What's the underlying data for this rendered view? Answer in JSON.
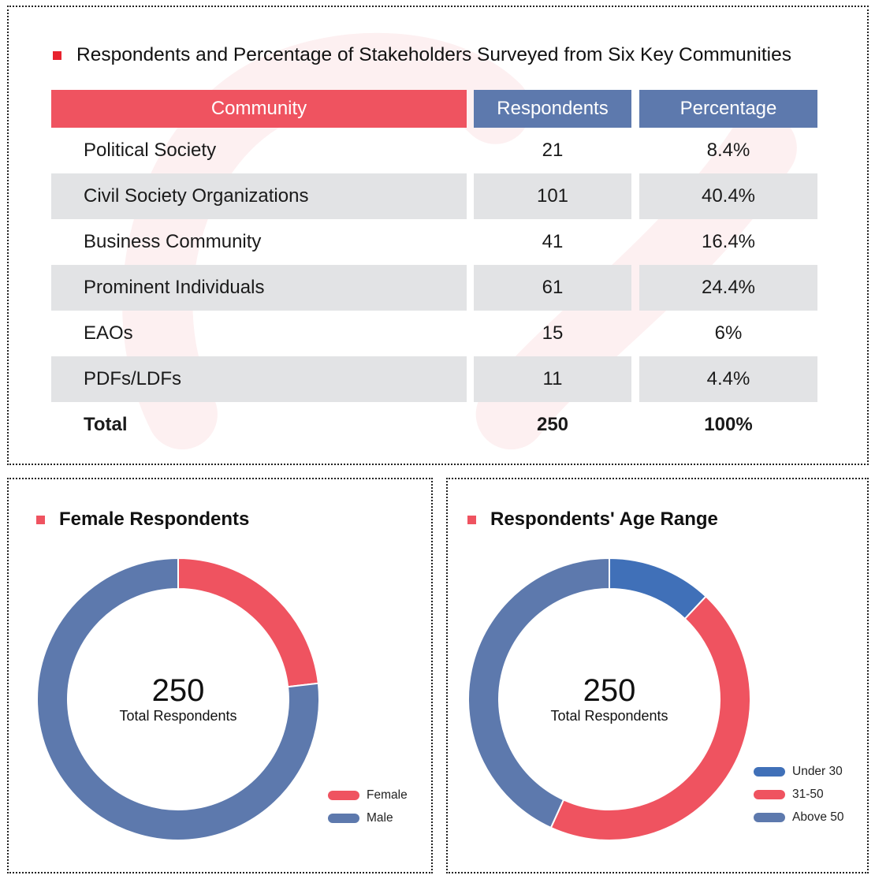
{
  "colors": {
    "accent_red": "#ef5360",
    "title_bullet_red": "#e8232e",
    "header_blue": "#5d79ad",
    "under30_blue": "#4070b8",
    "row_shade": "#e2e3e5"
  },
  "table_section": {
    "title": "Respondents and Percentage of Stakeholders Surveyed from Six Key Communities",
    "headers": {
      "community": "Community",
      "respondents": "Respondents",
      "percentage": "Percentage"
    },
    "rows": [
      {
        "community": "Political Society",
        "respondents": "21",
        "percentage": "8.4%"
      },
      {
        "community": "Civil Society Organizations",
        "respondents": "101",
        "percentage": "40.4%"
      },
      {
        "community": "Business Community",
        "respondents": "41",
        "percentage": "16.4%"
      },
      {
        "community": "Prominent Individuals",
        "respondents": "61",
        "percentage": "24.4%"
      },
      {
        "community": "EAOs",
        "respondents": "15",
        "percentage": "6%"
      },
      {
        "community": "PDFs/LDFs",
        "respondents": "11",
        "percentage": "4.4%"
      }
    ],
    "total": {
      "label": "Total",
      "respondents": "250",
      "percentage": "100%"
    }
  },
  "gender_section": {
    "title": "Female Respondents",
    "center_value": "250",
    "center_label": "Total Respondents"
  },
  "age_section": {
    "title": "Respondents' Age Range",
    "center_value": "250",
    "center_label": "Total Respondents"
  },
  "chart_data": [
    {
      "type": "table",
      "title": "Respondents and Percentage of Stakeholders Surveyed from Six Key Communities",
      "columns": [
        "Community",
        "Respondents",
        "Percentage"
      ],
      "rows": [
        [
          "Political Society",
          21,
          "8.4%"
        ],
        [
          "Civil Society Organizations",
          101,
          "40.4%"
        ],
        [
          "Business Community",
          41,
          "16.4%"
        ],
        [
          "Prominent Individuals",
          61,
          "24.4%"
        ],
        [
          "EAOs",
          15,
          "6%"
        ],
        [
          "PDFs/LDFs",
          11,
          "4.4%"
        ]
      ],
      "total": [
        "Total",
        250,
        "100%"
      ]
    },
    {
      "type": "pie",
      "variant": "donut",
      "title": "Female Respondents",
      "center_text": "250",
      "center_subtext": "Total Respondents",
      "total": 250,
      "start": "top",
      "direction": "clockwise",
      "legend_position": "bottom-right",
      "series": [
        {
          "name": "Female",
          "value": 58,
          "color": "#ef5360"
        },
        {
          "name": "Male",
          "value": 192,
          "color": "#5d79ad"
        }
      ]
    },
    {
      "type": "pie",
      "variant": "donut",
      "title": "Respondents' Age Range",
      "center_text": "250",
      "center_subtext": "Total Respondents",
      "total": 250,
      "start": "top",
      "direction": "clockwise",
      "legend_position": "bottom-right",
      "series": [
        {
          "name": "Under 30",
          "value": 30,
          "color": "#4070b8"
        },
        {
          "name": "31-50",
          "value": 112,
          "color": "#ef5360"
        },
        {
          "name": "Above 50",
          "value": 108,
          "color": "#5d79ad"
        }
      ]
    }
  ]
}
